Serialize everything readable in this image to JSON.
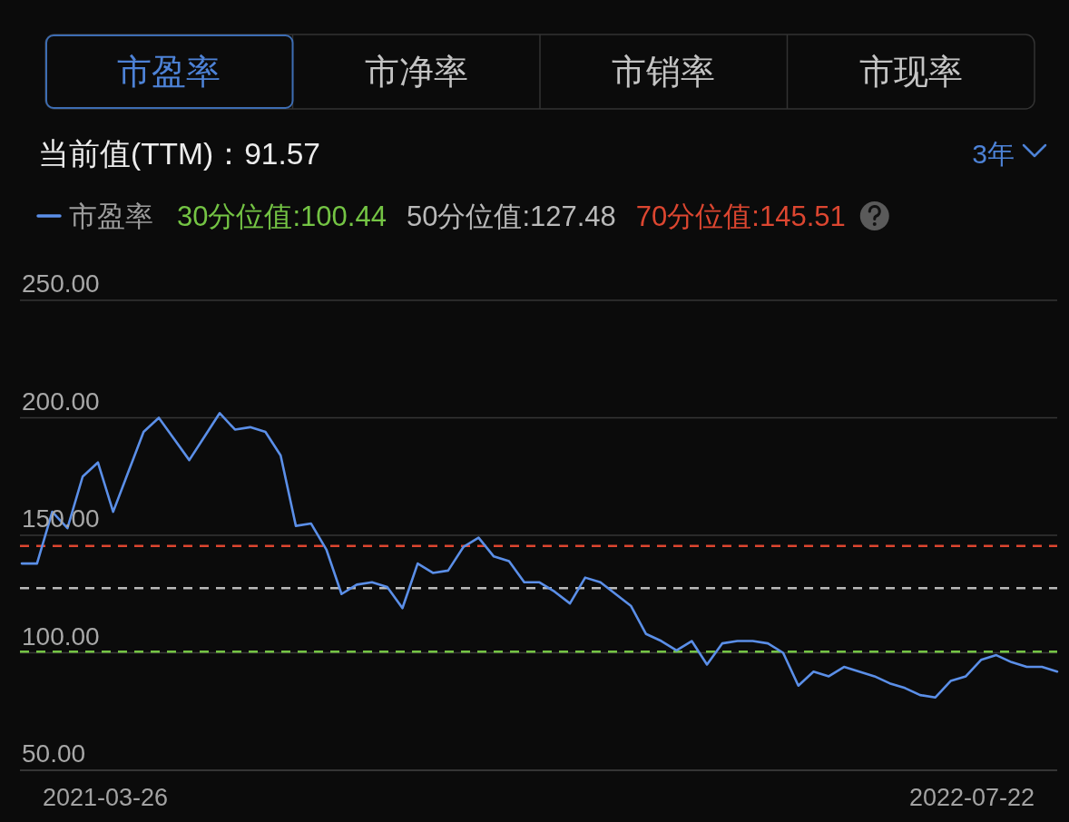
{
  "chart_data": {
    "type": "line",
    "subtitle": "当前值(TTM)：91.57",
    "annotations": [
      "市盈率",
      "市净率",
      "市销率",
      "市现率",
      "3年",
      "2021-03-26",
      "2022-07-22"
    ],
    "categories": [
      null,
      null,
      null,
      null,
      null,
      null,
      null,
      null,
      null,
      null,
      null,
      null,
      null,
      null,
      null,
      null,
      null,
      null,
      null,
      null,
      null,
      null,
      null,
      null,
      null,
      null,
      null,
      null,
      null,
      null,
      null,
      null,
      null,
      null,
      null,
      null,
      null,
      null,
      null,
      null,
      null,
      null,
      null,
      null,
      null,
      null,
      null,
      null,
      null,
      null,
      null,
      null,
      null,
      null,
      null,
      null,
      null,
      null,
      null,
      null,
      null,
      null,
      null,
      null,
      null,
      null,
      null,
      null,
      null
    ],
    "series": [
      {
        "name": "市盈率",
        "color": "#5b8fe8",
        "values": [
          138,
          138,
          160,
          153,
          175,
          181,
          160,
          177,
          194,
          200,
          191,
          182,
          192,
          202,
          195,
          196,
          194,
          184,
          154,
          155,
          144,
          125,
          129,
          130,
          128,
          119,
          138,
          134,
          135,
          145,
          149,
          141,
          139,
          130,
          130,
          126,
          121,
          132,
          130,
          125,
          120,
          108,
          105,
          101,
          105,
          95,
          104,
          105,
          105,
          104,
          100,
          86,
          92,
          90,
          94,
          92,
          90,
          87,
          85,
          82,
          81,
          88,
          90,
          97,
          99,
          96,
          94,
          94,
          92
        ]
      }
    ],
    "ylim": [
      50,
      250
    ],
    "yticks": [
      {
        "value": 50,
        "label": "50.00"
      },
      {
        "value": 100,
        "label": "100.00"
      },
      {
        "value": 150,
        "label": "150.00"
      },
      {
        "value": 200,
        "label": "200.00"
      },
      {
        "value": 250,
        "label": "250.00"
      }
    ],
    "grid": "y",
    "legend": "top left",
    "ref_lines": [
      {
        "axis": "y",
        "value": 100.44,
        "label": "30分位值:100.44",
        "color": "#74c444",
        "line_style": "dashed"
      },
      {
        "axis": "y",
        "value": 127.48,
        "label": "50分位值:127.48",
        "color": "#b9b9b9",
        "line_style": "dashed"
      },
      {
        "axis": "y",
        "value": 145.51,
        "label": "70分位值:145.51",
        "color": "#dc4630",
        "line_style": "dashed"
      }
    ]
  }
}
